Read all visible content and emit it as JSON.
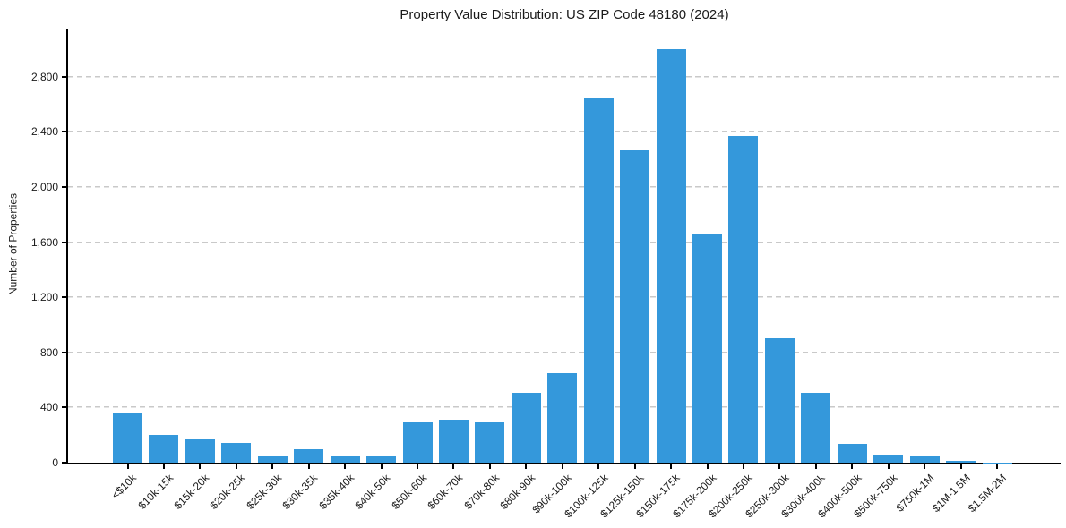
{
  "figure": {
    "title": "Property Value Distribution: US ZIP Code 48180 (2024)",
    "ylabel": "Number of Properties"
  },
  "chart_data": {
    "type": "bar",
    "title": "Property Value Distribution: US ZIP Code 48180 (2024)",
    "xlabel": "",
    "ylabel": "Number of Properties",
    "categories": [
      "<$10k",
      "$10k-15k",
      "$15k-20k",
      "$20k-25k",
      "$25k-30k",
      "$30k-35k",
      "$35k-40k",
      "$40k-50k",
      "$50k-60k",
      "$60k-70k",
      "$70k-80k",
      "$80k-90k",
      "$90k-100k",
      "$100k-125k",
      "$125k-150k",
      "$150k-175k",
      "$175k-200k",
      "$200k-250k",
      "$250k-300k",
      "$300k-400k",
      "$400k-500k",
      "$500k-750k",
      "$750k-1M",
      "$1M-1.5M",
      "$1.5M-2M"
    ],
    "values": [
      355,
      200,
      170,
      140,
      55,
      100,
      50,
      45,
      295,
      310,
      290,
      505,
      650,
      2650,
      2265,
      3000,
      1665,
      2370,
      900,
      505,
      135,
      60,
      55,
      10,
      2
    ],
    "ylim": [
      0,
      3150
    ],
    "yticks": [
      0,
      400,
      800,
      1200,
      1600,
      2000,
      2400,
      2800
    ],
    "ytick_labels": [
      "0",
      "400",
      "800",
      "1,200",
      "1,600",
      "2,000",
      "2,400",
      "2,800"
    ],
    "bar_color": "#3498db",
    "gridline_color": "#c9c9c9",
    "grid": "horizontal-dashed",
    "legend": "none",
    "x_tick_rotation_deg": 45
  }
}
